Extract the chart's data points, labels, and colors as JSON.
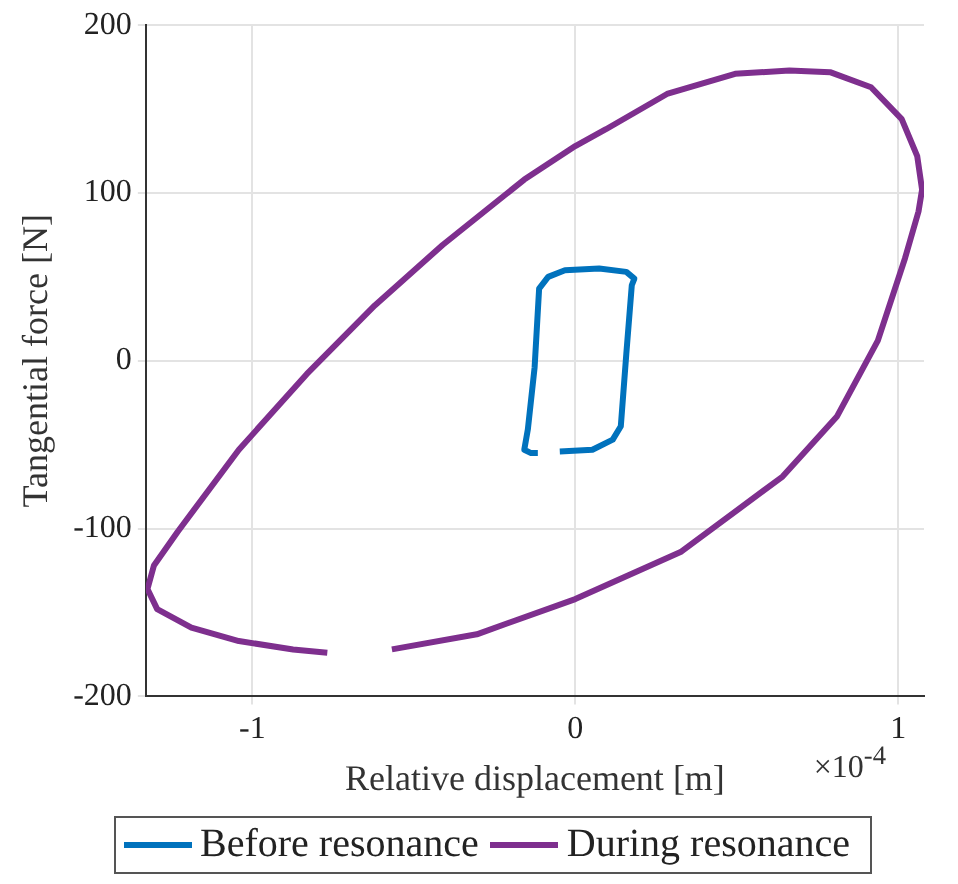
{
  "chart_data": {
    "type": "line",
    "xlabel": "Relative displacement [m]",
    "ylabel": "Tangential force [N]",
    "annotations": [
      "×10$^{-4}$"
    ],
    "xlim": [
      -1.33,
      1.08
    ],
    "xticks": [
      -1,
      0,
      1
    ],
    "ylim": [
      -200,
      200
    ],
    "yticks": [
      -200,
      -100,
      0,
      100,
      200
    ],
    "grid": true,
    "legend": "bottom",
    "marker": "none",
    "line_style": "solid",
    "series": [
      {
        "name": "Before resonance",
        "color": "#0072bd",
        "x": [
          -0.048,
          0.053,
          0.116,
          0.141,
          0.158,
          0.175,
          0.183,
          0.158,
          0.074,
          -0.032,
          -0.084,
          -0.112,
          -0.126,
          -0.147,
          -0.158,
          -0.137,
          -0.116
        ],
        "values": [
          -54,
          -53,
          -47,
          -39,
          4,
          45,
          49,
          53,
          55,
          54,
          50,
          43,
          -4,
          -41,
          -53,
          -55,
          -55
        ]
      },
      {
        "name": "During resonance",
        "color": "#7e2f8e",
        "x": [
          -0.568,
          -0.305,
          0,
          0.326,
          0.642,
          0.811,
          0.937,
          1.021,
          1.063,
          1.074,
          1.059,
          1.011,
          0.916,
          0.789,
          0.663,
          0.495,
          0.284,
          0.095,
          0,
          -0.158,
          -0.411,
          -0.621,
          -0.832,
          -1.042,
          -1.232,
          -1.305,
          -1.325,
          -1.295,
          -1.189,
          -1.042,
          -0.874,
          -0.768
        ],
        "values": [
          -172,
          -163,
          -142,
          -114,
          -69,
          -33,
          12,
          61,
          89,
          102,
          122,
          144,
          163,
          172,
          173,
          171,
          159,
          138,
          128,
          108,
          69,
          33,
          -8,
          -53,
          -102,
          -122,
          -136,
          -148,
          -159,
          -167,
          -172,
          -174
        ]
      }
    ]
  }
}
